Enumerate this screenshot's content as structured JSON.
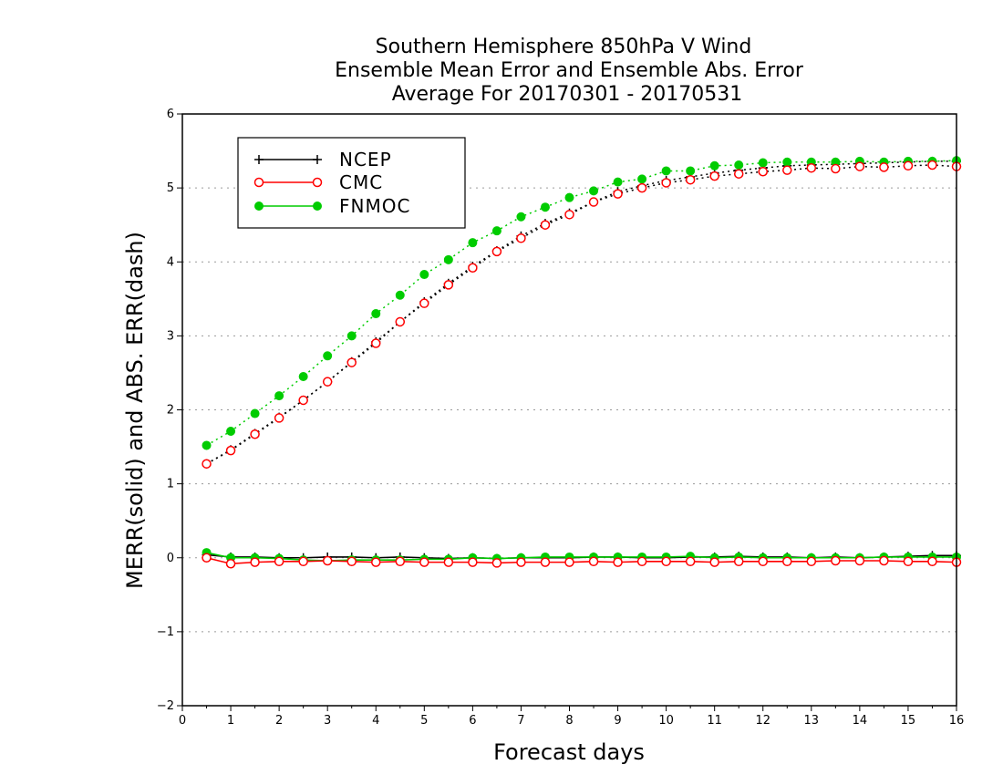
{
  "chart_data": {
    "type": "line",
    "title": [
      "Southern Hemisphere 850hPa V Wind",
      "Ensemble Mean Error and Ensemble Abs. Error",
      "Average For 20170301 - 20170531"
    ],
    "xlabel": "Forecast days",
    "ylabel": "MERR(solid) and ABS. ERR(dash)",
    "xlim": [
      0,
      16
    ],
    "ylim": [
      -2,
      6
    ],
    "xticks": [
      "0",
      "1",
      "2",
      "3",
      "4",
      "5",
      "6",
      "7",
      "8",
      "9",
      "10",
      "11",
      "12",
      "13",
      "14",
      "15",
      "16"
    ],
    "yticks": [
      "−2",
      "−1",
      "0",
      "1",
      "2",
      "3",
      "4",
      "5",
      "6"
    ],
    "grid": "horizontal dotted",
    "legend_position": "top-left",
    "x": [
      0.5,
      1,
      1.5,
      2,
      2.5,
      3,
      3.5,
      4,
      4.5,
      5,
      5.5,
      6,
      6.5,
      7,
      7.5,
      8,
      8.5,
      9,
      9.5,
      10,
      10.5,
      11,
      11.5,
      12,
      12.5,
      13,
      13.5,
      14,
      14.5,
      15,
      15.5,
      16
    ],
    "series": [
      {
        "name": "NCEP",
        "color": "#000000",
        "marker": "plus",
        "merr": [
          0.04,
          0.01,
          0.01,
          0.0,
          0.0,
          0.01,
          0.01,
          0.0,
          0.01,
          0.0,
          -0.01,
          0.0,
          -0.01,
          0.0,
          0.0,
          0.0,
          0.01,
          0.01,
          0.0,
          0.0,
          0.01,
          0.01,
          0.02,
          0.01,
          0.01,
          0.0,
          0.01,
          0.0,
          0.01,
          0.02,
          0.03,
          0.03
        ],
        "abs_err": [
          1.27,
          1.46,
          1.68,
          1.9,
          2.13,
          2.38,
          2.65,
          2.92,
          3.19,
          3.46,
          3.71,
          3.94,
          4.15,
          4.35,
          4.52,
          4.66,
          4.81,
          4.95,
          5.03,
          5.1,
          5.15,
          5.2,
          5.24,
          5.27,
          5.3,
          5.31,
          5.32,
          5.33,
          5.34,
          5.35,
          5.36,
          5.36
        ]
      },
      {
        "name": "CMC",
        "color": "#ff0000",
        "marker": "open-circle",
        "merr": [
          0.0,
          -0.08,
          -0.06,
          -0.05,
          -0.05,
          -0.04,
          -0.05,
          -0.06,
          -0.05,
          -0.06,
          -0.06,
          -0.06,
          -0.07,
          -0.06,
          -0.06,
          -0.06,
          -0.05,
          -0.06,
          -0.05,
          -0.05,
          -0.05,
          -0.06,
          -0.05,
          -0.05,
          -0.05,
          -0.05,
          -0.04,
          -0.04,
          -0.04,
          -0.05,
          -0.05,
          -0.06
        ],
        "abs_err": [
          1.27,
          1.45,
          1.67,
          1.89,
          2.13,
          2.38,
          2.64,
          2.9,
          3.19,
          3.44,
          3.69,
          3.92,
          4.14,
          4.32,
          4.5,
          4.64,
          4.81,
          4.92,
          5.0,
          5.07,
          5.11,
          5.16,
          5.19,
          5.22,
          5.24,
          5.27,
          5.26,
          5.29,
          5.28,
          5.3,
          5.31,
          5.29
        ]
      },
      {
        "name": "FNMOC",
        "color": "#00cc00",
        "marker": "filled-circle",
        "merr": [
          0.07,
          0.0,
          0.0,
          -0.01,
          -0.03,
          -0.04,
          -0.03,
          -0.03,
          -0.03,
          -0.02,
          -0.02,
          0.0,
          -0.01,
          0.0,
          0.01,
          0.01,
          0.01,
          0.01,
          0.01,
          0.01,
          0.02,
          0.0,
          0.01,
          0.0,
          0.0,
          0.0,
          0.0,
          0.0,
          0.01,
          0.01,
          0.01,
          0.01
        ],
        "abs_err": [
          1.52,
          1.71,
          1.95,
          2.19,
          2.45,
          2.73,
          3.0,
          3.3,
          3.55,
          3.83,
          4.03,
          4.26,
          4.42,
          4.61,
          4.74,
          4.87,
          4.96,
          5.08,
          5.12,
          5.23,
          5.23,
          5.3,
          5.31,
          5.34,
          5.35,
          5.35,
          5.35,
          5.36,
          5.35,
          5.36,
          5.36,
          5.37
        ]
      }
    ]
  }
}
